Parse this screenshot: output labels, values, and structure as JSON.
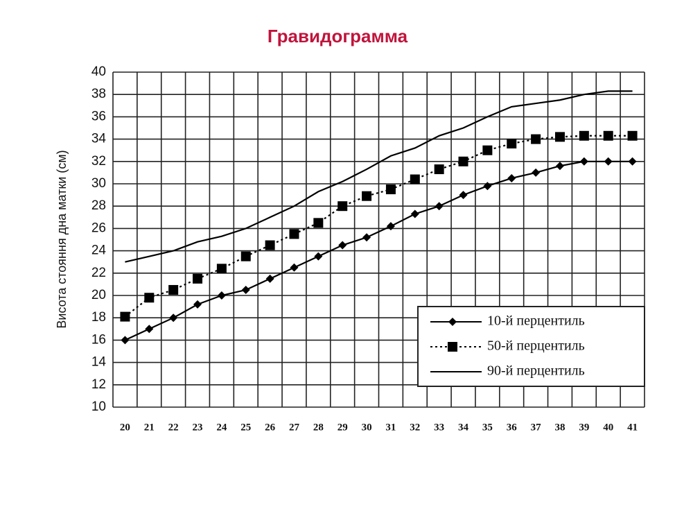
{
  "chart_data": {
    "type": "line",
    "title": "Гравидограмма",
    "y_label": "Висота стояння дна матки (см)",
    "categories": [
      20,
      21,
      22,
      23,
      24,
      25,
      26,
      27,
      28,
      29,
      30,
      31,
      32,
      33,
      34,
      35,
      36,
      37,
      38,
      39,
      40,
      41
    ],
    "series": [
      {
        "name": "10-й перцентиль",
        "color": "#000000",
        "marker": "diamond",
        "dash": "solid",
        "values": [
          16,
          17,
          18,
          19.2,
          20,
          20.5,
          21.5,
          22.5,
          23.5,
          24.5,
          25.2,
          26.2,
          27.3,
          28,
          29,
          29.8,
          30.5,
          31,
          31.6,
          32,
          32,
          32
        ]
      },
      {
        "name": "50-й перцентиль",
        "color": "#000000",
        "marker": "square",
        "dash": "dotted",
        "values": [
          18.1,
          19.8,
          20.5,
          21.5,
          22.4,
          23.5,
          24.5,
          25.5,
          26.5,
          28,
          28.9,
          29.5,
          30.4,
          31.3,
          32,
          33,
          33.6,
          34,
          34.2,
          34.3,
          34.3,
          34.3
        ]
      },
      {
        "name": "90-й перцентиль",
        "color": "#000000",
        "marker": "none",
        "dash": "solid",
        "values": [
          23,
          23.5,
          24,
          24.8,
          25.3,
          26,
          27,
          28,
          29.3,
          30.2,
          31.3,
          32.5,
          33.2,
          34.3,
          35,
          36,
          36.9,
          37.2,
          37.5,
          38,
          38.3,
          38.3
        ]
      }
    ],
    "ylim": [
      10,
      40
    ],
    "yticks": [
      10,
      12,
      14,
      16,
      18,
      20,
      22,
      24,
      26,
      28,
      30,
      32,
      34,
      36,
      38,
      40
    ],
    "grid": true,
    "legend": "lower-right"
  }
}
